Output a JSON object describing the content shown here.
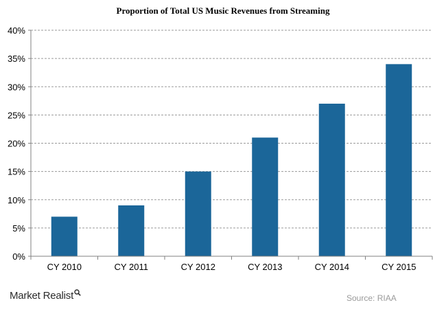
{
  "colors": {
    "bar": "#1b6699",
    "grid": "#9a9a9a",
    "axis": "#808080"
  },
  "footer": {
    "brand": "Market Realist",
    "brand_icon": "magnifier-icon",
    "source": "Source: RIAA"
  },
  "chart_data": {
    "type": "bar",
    "title": "Proportion of Total US Music Revenues from Streaming",
    "xlabel": "",
    "ylabel": "",
    "categories": [
      "CY 2010",
      "CY 2011",
      "CY 2012",
      "CY 2013",
      "CY 2014",
      "CY 2015"
    ],
    "values": [
      7,
      9,
      15,
      21,
      27,
      34
    ],
    "ylim": [
      0,
      40
    ],
    "yticks": [
      0,
      5,
      10,
      15,
      20,
      25,
      30,
      35,
      40
    ],
    "ytick_labels": [
      "0%",
      "5%",
      "10%",
      "15%",
      "20%",
      "25%",
      "30%",
      "35%",
      "40%"
    ],
    "grid": true,
    "grid_style": "dashed",
    "legend": false
  }
}
